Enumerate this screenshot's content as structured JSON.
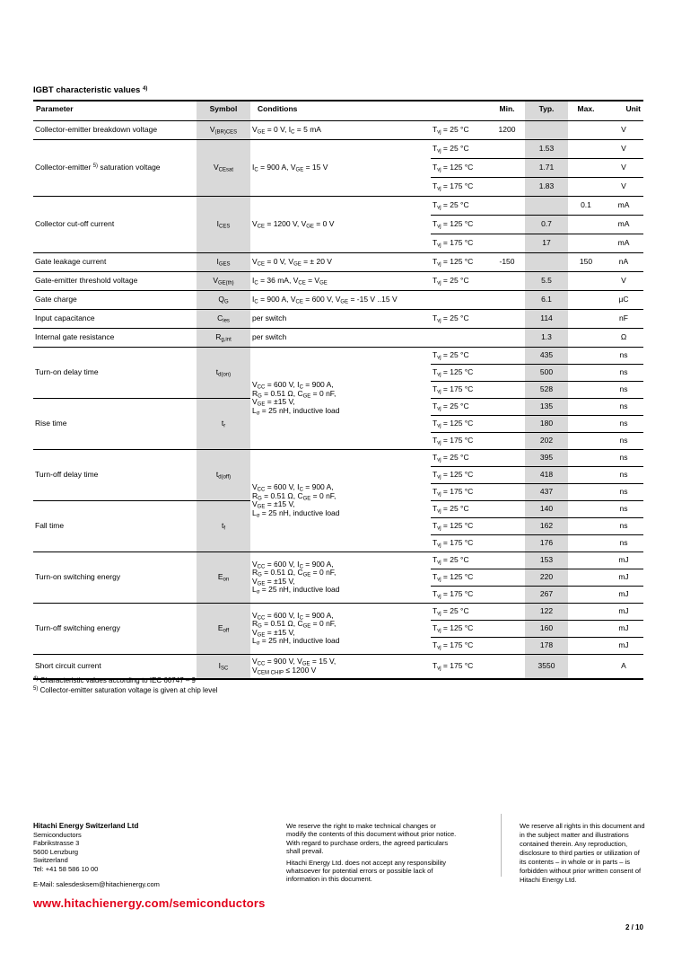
{
  "colors": {
    "accent_red": "#e2001a",
    "shade_gray": "#d9d9d9"
  },
  "title": "IGBT characteristic values ^4)^",
  "table": {
    "headers": {
      "parameter": "Parameter",
      "symbol": "Symbol",
      "conditions": "Conditions",
      "min": "Min.",
      "typ": "Typ.",
      "max": "Max.",
      "unit": "Unit"
    },
    "groups": [
      {
        "param": "Collector-emitter breakdown voltage",
        "sym": "V~(BR)CES~",
        "cond": "V~GE~ = 0 V, I~C~ = 5 mA",
        "rows": [
          {
            "temp": "T~vj~ = 25 °C",
            "min": "1200",
            "unit": "V"
          }
        ]
      },
      {
        "param": "Collector-emitter ^5)^ saturation voltage",
        "sym": "V~CEsat~",
        "cond": "I~C~ = 900 A, V~GE~ = 15 V",
        "rows": [
          {
            "temp": "T~vj~ = 25 °C",
            "typ": "1.53",
            "unit": "V"
          },
          {
            "temp": "T~vj~ = 125 °C",
            "typ": "1.71",
            "unit": "V"
          },
          {
            "temp": "T~vj~ = 175 °C",
            "typ": "1.83",
            "unit": "V"
          }
        ]
      },
      {
        "param": "Collector cut-off current",
        "sym": "I~CES~",
        "cond": "V~CE~ = 1200 V, V~GE~ = 0 V",
        "rows": [
          {
            "temp": "T~vj~ = 25 °C",
            "max": "0.1",
            "unit": "mA"
          },
          {
            "temp": "T~vj~ = 125 °C",
            "typ": "0.7",
            "unit": "mA"
          },
          {
            "temp": "T~vj~ = 175 °C",
            "typ": "17",
            "unit": "mA"
          }
        ]
      },
      {
        "param": "Gate leakage current",
        "sym": "I~GES~",
        "cond": "V~CE~ = 0 V, V~GE~ = ± 20 V",
        "rows": [
          {
            "temp": "T~vj~ = 125 °C",
            "min": "-150",
            "max": "150",
            "unit": "nA"
          }
        ]
      },
      {
        "param": "Gate-emitter threshold voltage",
        "sym": "V~GE(th)~",
        "cond": "I~C~ = 36 mA, V~CE~ = V~GE~",
        "rows": [
          {
            "temp": "T~vj~ = 25 °C",
            "typ": "5.5",
            "unit": "V"
          }
        ]
      },
      {
        "param": "Gate charge",
        "sym": "Q~G~",
        "cond": "I~C~ = 900 A, V~CE~ = 600 V, V~GE~ = -15 V ..15 V",
        "rows": [
          {
            "typ": "6.1",
            "unit": "µC"
          }
        ]
      },
      {
        "param": "Input capacitance",
        "sym": "C~ies~",
        "cond": "per switch",
        "rows": [
          {
            "temp": "T~vj~ = 25 °C",
            "typ": "114",
            "unit": "nF"
          }
        ]
      },
      {
        "param": "Internal gate resistance",
        "sym": "R~g,int~",
        "cond": "per switch",
        "rows": [
          {
            "typ": "1.3",
            "unit": "Ω"
          }
        ]
      },
      {
        "cond": "V~CC~ = 600 V, I~C~ = 900 A,\nR~G~ = 0.51 Ω, C~GE~ = 0 nF,\nV~GE~ = ±15 V,\nL~σ~ = 25 nH, inductive load",
        "subs": [
          {
            "param": "Turn-on delay time",
            "sym": "t~d(on)~",
            "rows": [
              {
                "temp": "T~vj~ = 25 °C",
                "typ": "435",
                "unit": "ns"
              },
              {
                "temp": "T~vj~ = 125 °C",
                "typ": "500",
                "unit": "ns"
              },
              {
                "temp": "T~vj~ = 175 °C",
                "typ": "528",
                "unit": "ns"
              }
            ]
          },
          {
            "param": "Rise time",
            "sym": "t~r~",
            "rows": [
              {
                "temp": "T~vj~ = 25 °C",
                "typ": "135",
                "unit": "ns"
              },
              {
                "temp": "T~vj~ = 125 °C",
                "typ": "180",
                "unit": "ns"
              },
              {
                "temp": "T~vj~ = 175 °C",
                "typ": "202",
                "unit": "ns"
              }
            ]
          }
        ]
      },
      {
        "cond": "V~CC~ = 600 V, I~C~ = 900 A,\nR~G~ = 0.51 Ω, C~GE~ = 0 nF,\nV~GE~ = ±15 V,\nL~σ~ = 25 nH, inductive load",
        "subs": [
          {
            "param": "Turn-off delay time",
            "sym": "t~d(off)~",
            "rows": [
              {
                "temp": "T~vj~ = 25 °C",
                "typ": "395",
                "unit": "ns"
              },
              {
                "temp": "T~vj~ = 125 °C",
                "typ": "418",
                "unit": "ns"
              },
              {
                "temp": "T~vj~ = 175 °C",
                "typ": "437",
                "unit": "ns"
              }
            ]
          },
          {
            "param": "Fall time",
            "sym": "t~f~",
            "rows": [
              {
                "temp": "T~vj~ = 25 °C",
                "typ": "140",
                "unit": "ns"
              },
              {
                "temp": "T~vj~ = 125 °C",
                "typ": "162",
                "unit": "ns"
              },
              {
                "temp": "T~vj~ = 175 °C",
                "typ": "176",
                "unit": "ns"
              }
            ]
          }
        ]
      },
      {
        "param": "Turn-on switching energy",
        "sym": "E~on~",
        "cond": "V~CC~ = 600 V, I~C~ = 900 A,\nR~G~ = 0.51 Ω, C~GE~ = 0 nF,\nV~GE~ = ±15 V,\nL~σ~ = 25 nH, inductive load",
        "rows": [
          {
            "temp": "T~vj~ = 25 °C",
            "typ": "153",
            "unit": "mJ"
          },
          {
            "temp": "T~vj~ = 125 °C",
            "typ": "220",
            "unit": "mJ"
          },
          {
            "temp": "T~vj~ = 175 °C",
            "typ": "267",
            "unit": "mJ"
          }
        ]
      },
      {
        "param": "Turn-off switching energy",
        "sym": "E~off~",
        "cond": "V~CC~ = 600 V, I~C~ = 900 A,\nR~G~ = 0.51 Ω, C~GE~ = 0 nF,\nV~GE~ = ±15 V,\nL~σ~ = 25 nH, inductive load",
        "rows": [
          {
            "temp": "T~vj~ = 25 °C",
            "typ": "122",
            "unit": "mJ"
          },
          {
            "temp": "T~vj~ = 125 °C",
            "typ": "160",
            "unit": "mJ"
          },
          {
            "temp": "T~vj~ = 175 °C",
            "typ": "178",
            "unit": "mJ"
          }
        ]
      },
      {
        "param": "Short circuit current",
        "sym": "I~SC~",
        "cond": "V~CC~ = 900 V, V~GE~ = 15 V,\nV~CEM CHIP~ ≤ 1200 V",
        "rows": [
          {
            "temp": "T~vj~ = 175 °C",
            "typ": "3550",
            "unit": "A"
          }
        ]
      }
    ]
  },
  "footnotes": [
    "^4)^ Characteristic values according to IEC 60747 – 9",
    "^5)^ Collector-emitter saturation voltage is given at chip level"
  ],
  "footer": {
    "company": {
      "name": "Hitachi Energy Switzerland Ltd",
      "lines": [
        "Semiconductors",
        "Fabrikstrasse 3",
        "5600 Lenzburg",
        "Switzerland",
        "Tel: +41 58 586 10 00"
      ],
      "email": "E-Mail: salesdesksem@hitachienergy.com",
      "url": "www.hitachienergy.com/semiconductors"
    },
    "disclaimer_mid_p1": "We reserve the right to make technical changes or modify the contents of this document without prior notice. With regard to purchase orders, the agreed particulars shall prevail.",
    "disclaimer_mid_p2": "Hitachi Energy Ltd. does not accept any responsibility whatsoever for potential errors or possible lack of information in this document.",
    "disclaimer_right": "We reserve all rights in this document and in the subject matter and illustrations contained therein. Any reproduction, disclosure to third parties or utilization of its contents – in whole or in parts – is forbidden without prior written consent of Hitachi Energy Ltd.",
    "page_number": "2 / 10"
  }
}
